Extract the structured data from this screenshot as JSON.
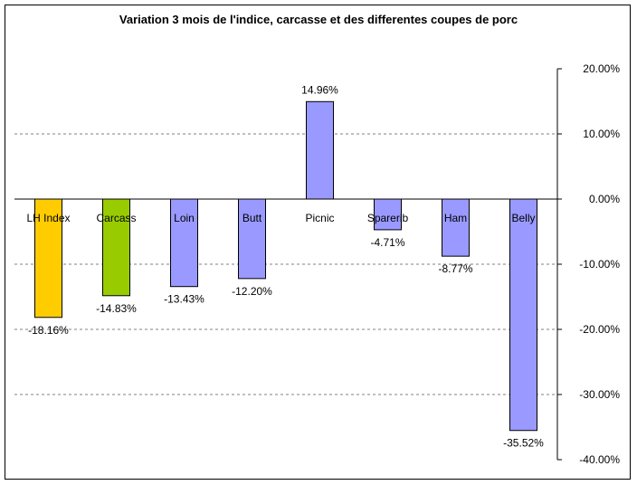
{
  "chart_data": {
    "type": "bar",
    "title": "Variation 3 mois de l'indice, carcasse et des differentes coupes de porc",
    "categories": [
      "LH Index",
      "Carcass",
      "Loin",
      "Butt",
      "Picnic",
      "Sparerib",
      "Ham",
      "Belly"
    ],
    "values": [
      -18.16,
      -14.83,
      -13.43,
      -12.2,
      14.96,
      -4.71,
      -8.77,
      -35.52
    ],
    "data_labels": [
      "-18.16%",
      "-14.83%",
      "-13.43%",
      "-12.20%",
      "14.96%",
      "-4.71%",
      "-8.77%",
      "-35.52%"
    ],
    "bar_colors": [
      "#FFCC00",
      "#99CC00",
      "#9999FF",
      "#9999FF",
      "#9999FF",
      "#9999FF",
      "#9999FF",
      "#9999FF"
    ],
    "ylim": [
      -40,
      20
    ],
    "y_ticks": [
      20,
      10,
      0,
      -10,
      -20,
      -30,
      -40
    ],
    "y_tick_labels": [
      "20.00%",
      "10.00%",
      "0.00%",
      "-10.00%",
      "-20.00%",
      "-30.00%",
      "-40.00%"
    ],
    "y_axis_side": "right",
    "grid": true,
    "grid_style": "dashed",
    "legend": "none"
  }
}
